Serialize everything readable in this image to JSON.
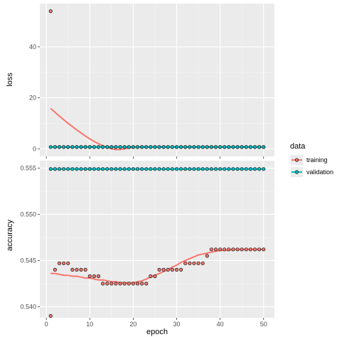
{
  "colors": {
    "training": "#F8766D",
    "validation": "#00BFC4",
    "panel_bg": "#EBEBEB",
    "grid_major": "#FFFFFF"
  },
  "chart_data": {
    "type": "scatter",
    "xlabel": "epoch",
    "legend": {
      "title": "data",
      "position": "right",
      "entries": [
        "training",
        "validation"
      ]
    },
    "x": [
      1,
      2,
      3,
      4,
      5,
      6,
      7,
      8,
      9,
      10,
      11,
      12,
      13,
      14,
      15,
      16,
      17,
      18,
      19,
      20,
      21,
      22,
      23,
      24,
      25,
      26,
      27,
      28,
      29,
      30,
      31,
      32,
      33,
      34,
      35,
      36,
      37,
      38,
      39,
      40,
      41,
      42,
      43,
      44,
      45,
      46,
      47,
      48,
      49,
      50
    ],
    "xlim": [
      -1.5,
      52.5
    ],
    "xticks": [
      0,
      10,
      20,
      30,
      40,
      50
    ],
    "panels": [
      {
        "ylabel": "loss",
        "ylim": [
          -3,
          57
        ],
        "yticks": [
          0,
          20,
          40
        ],
        "series": [
          {
            "name": "training",
            "points": [
              54.0,
              0.68,
              0.68,
              0.68,
              0.68,
              0.68,
              0.68,
              0.68,
              0.68,
              0.68,
              0.68,
              0.68,
              0.68,
              0.68,
              0.68,
              0.68,
              0.68,
              0.68,
              0.68,
              0.68,
              0.68,
              0.68,
              0.68,
              0.68,
              0.68,
              0.68,
              0.68,
              0.68,
              0.68,
              0.68,
              0.68,
              0.68,
              0.68,
              0.68,
              0.68,
              0.68,
              0.68,
              0.68,
              0.68,
              0.68,
              0.68,
              0.68,
              0.68,
              0.68,
              0.68,
              0.68,
              0.68,
              0.68,
              0.68,
              0.68
            ],
            "smooth": [
              15.8,
              14.3,
              12.8,
              11.4,
              10.0,
              8.7,
              7.4,
              6.2,
              5.0,
              3.9,
              2.9,
              2.0,
              1.2,
              0.5,
              0.0,
              -0.3,
              -0.3,
              0.0,
              0.3,
              0.5,
              0.6,
              0.68,
              0.68,
              0.68,
              0.68,
              0.68,
              0.68,
              0.68,
              0.68,
              0.68,
              0.68,
              0.68,
              0.68,
              0.68,
              0.68,
              0.68,
              0.68,
              0.68,
              0.68,
              0.68,
              0.68,
              0.68,
              0.68,
              0.68,
              0.68,
              0.68,
              0.68,
              0.68,
              0.68,
              0.68
            ]
          },
          {
            "name": "validation",
            "points": [
              0.69,
              0.69,
              0.69,
              0.69,
              0.69,
              0.69,
              0.69,
              0.69,
              0.69,
              0.69,
              0.69,
              0.69,
              0.69,
              0.69,
              0.69,
              0.69,
              0.69,
              0.69,
              0.69,
              0.69,
              0.69,
              0.69,
              0.69,
              0.69,
              0.69,
              0.69,
              0.69,
              0.69,
              0.69,
              0.69,
              0.69,
              0.69,
              0.69,
              0.69,
              0.69,
              0.69,
              0.69,
              0.69,
              0.69,
              0.69,
              0.69,
              0.69,
              0.69,
              0.69,
              0.69,
              0.69,
              0.69,
              0.69,
              0.69,
              0.69
            ],
            "smooth": [
              0.69,
              0.69,
              0.69,
              0.69,
              0.69,
              0.69,
              0.69,
              0.69,
              0.69,
              0.69,
              0.69,
              0.69,
              0.69,
              0.69,
              0.69,
              0.69,
              0.69,
              0.69,
              0.69,
              0.69,
              0.69,
              0.69,
              0.69,
              0.69,
              0.69,
              0.69,
              0.69,
              0.69,
              0.69,
              0.69,
              0.69,
              0.69,
              0.69,
              0.69,
              0.69,
              0.69,
              0.69,
              0.69,
              0.69,
              0.69,
              0.69,
              0.69,
              0.69,
              0.69,
              0.69,
              0.69,
              0.69,
              0.69,
              0.69,
              0.69
            ]
          }
        ]
      },
      {
        "ylabel": "accuracy",
        "ylim": [
          0.5388,
          0.5558
        ],
        "yticks": [
          0.54,
          0.545,
          0.55,
          0.555
        ],
        "ytick_labels": [
          "0.540",
          "0.545",
          "0.550",
          "0.555"
        ],
        "series": [
          {
            "name": "training",
            "points": [
              0.539,
              0.544,
              0.5447,
              0.5447,
              0.5447,
              0.544,
              0.544,
              0.544,
              0.544,
              0.5433,
              0.5433,
              0.5433,
              0.5425,
              0.5425,
              0.5425,
              0.5425,
              0.5425,
              0.5425,
              0.5425,
              0.5425,
              0.5425,
              0.5425,
              0.5425,
              0.5433,
              0.5433,
              0.544,
              0.544,
              0.544,
              0.544,
              0.544,
              0.544,
              0.5447,
              0.5447,
              0.5447,
              0.5447,
              0.5447,
              0.5455,
              0.5462,
              0.5462,
              0.5462,
              0.5462,
              0.5462,
              0.5462,
              0.5462,
              0.5462,
              0.5462,
              0.5462,
              0.5462,
              0.5462,
              0.5462
            ],
            "smooth": [
              0.5436,
              0.5436,
              0.5435,
              0.5434,
              0.5434,
              0.5433,
              0.5433,
              0.5432,
              0.5431,
              0.5431,
              0.543,
              0.5429,
              0.5429,
              0.5428,
              0.5427,
              0.5427,
              0.5426,
              0.5426,
              0.5426,
              0.5426,
              0.5427,
              0.5428,
              0.543,
              0.5432,
              0.5434,
              0.5436,
              0.5438,
              0.544,
              0.5443,
              0.5445,
              0.5448,
              0.545,
              0.5452,
              0.5454,
              0.5456,
              0.5457,
              0.5458,
              0.5459,
              0.546,
              0.5461,
              0.5461,
              0.5461,
              0.5462,
              0.5462,
              0.5462,
              0.5462,
              0.5462,
              0.5462,
              0.5462,
              0.5462
            ]
          },
          {
            "name": "validation",
            "points": [
              0.5549,
              0.5549,
              0.5549,
              0.5549,
              0.5549,
              0.5549,
              0.5549,
              0.5549,
              0.5549,
              0.5549,
              0.5549,
              0.5549,
              0.5549,
              0.5549,
              0.5549,
              0.5549,
              0.5549,
              0.5549,
              0.5549,
              0.5549,
              0.5549,
              0.5549,
              0.5549,
              0.5549,
              0.5549,
              0.5549,
              0.5549,
              0.5549,
              0.5549,
              0.5549,
              0.5549,
              0.5549,
              0.5549,
              0.5549,
              0.5549,
              0.5549,
              0.5549,
              0.5549,
              0.5549,
              0.5549,
              0.5549,
              0.5549,
              0.5549,
              0.5549,
              0.5549,
              0.5549,
              0.5549,
              0.5549,
              0.5549,
              0.5549
            ],
            "smooth": [
              0.5549,
              0.5549,
              0.5549,
              0.5549,
              0.5549,
              0.5549,
              0.5549,
              0.5549,
              0.5549,
              0.5549,
              0.5549,
              0.5549,
              0.5549,
              0.5549,
              0.5549,
              0.5549,
              0.5549,
              0.5549,
              0.5549,
              0.5549,
              0.5549,
              0.5549,
              0.5549,
              0.5549,
              0.5549,
              0.5549,
              0.5549,
              0.5549,
              0.5549,
              0.5549,
              0.5549,
              0.5549,
              0.5549,
              0.5549,
              0.5549,
              0.5549,
              0.5549,
              0.5549,
              0.5549,
              0.5549,
              0.5549,
              0.5549,
              0.5549,
              0.5549,
              0.5549,
              0.5549,
              0.5549,
              0.5549,
              0.5549,
              0.5549
            ]
          }
        ]
      }
    ]
  }
}
